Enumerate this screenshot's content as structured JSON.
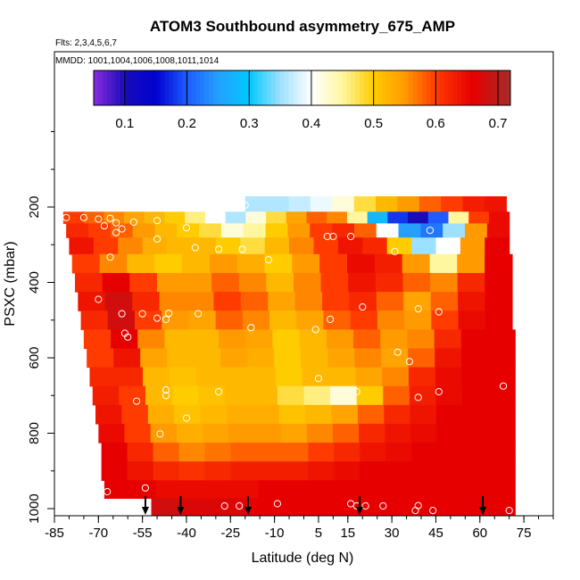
{
  "chart_data": {
    "type": "heatmap",
    "title": "ATOM3 Southbound asymmetry_675_AMP",
    "subtitle_flights": "Flts: 2,3,4,5,6,7",
    "subtitle_dates": "MMDD: 1001,1004,1006,1008,1011,1014",
    "xlabel": "Latitude (deg N)",
    "ylabel": "PSXC (mbar)",
    "xlim": [
      -85,
      85
    ],
    "ylim": [
      1000,
      0
    ],
    "x_ticks": [
      -85,
      -70,
      -55,
      -40,
      -25,
      -10,
      5,
      15,
      30,
      45,
      60,
      75
    ],
    "y_ticks": [
      200,
      400,
      600,
      800,
      1000
    ],
    "colorbar": {
      "range": [
        0.05,
        0.72
      ],
      "ticks": [
        0.1,
        0.2,
        0.3,
        0.4,
        0.5,
        0.6,
        0.7
      ],
      "stops": [
        {
          "v": 0.05,
          "c": "#8a2be2"
        },
        {
          "v": 0.1,
          "c": "#1a0db8"
        },
        {
          "v": 0.15,
          "c": "#0000d0"
        },
        {
          "v": 0.2,
          "c": "#1e5cff"
        },
        {
          "v": 0.25,
          "c": "#25a0ff"
        },
        {
          "v": 0.3,
          "c": "#00c8ff"
        },
        {
          "v": 0.35,
          "c": "#9ee0ff"
        },
        {
          "v": 0.4,
          "c": "#ffffff"
        },
        {
          "v": 0.45,
          "c": "#fff7a0"
        },
        {
          "v": 0.5,
          "c": "#ffcc00"
        },
        {
          "v": 0.55,
          "c": "#ff9a00"
        },
        {
          "v": 0.6,
          "c": "#ff3b00"
        },
        {
          "v": 0.66,
          "c": "#e60000"
        },
        {
          "v": 0.72,
          "c": "#a52a2a"
        }
      ]
    },
    "profile_latitudes": [
      -54,
      -42,
      -19,
      19,
      61
    ],
    "field_rows": [
      {
        "p": 200,
        "lat_min": -20,
        "lat_max": 69,
        "v": [
          0.36,
          0.36,
          0.37,
          0.39,
          0.42,
          0.48,
          0.52,
          0.55,
          0.58,
          0.6,
          0.63,
          0.64
        ]
      },
      {
        "p": 225,
        "lat_min": -82,
        "lat_max": 70,
        "v": [
          0.6,
          0.58,
          0.56,
          0.54,
          0.52,
          0.5,
          0.46,
          0.4,
          0.36,
          0.42,
          0.48,
          0.54,
          0.58,
          0.56,
          0.45,
          0.28,
          0.18,
          0.1,
          0.2,
          0.45,
          0.6,
          0.65
        ]
      },
      {
        "p": 262,
        "lat_min": -81,
        "lat_max": 70,
        "v": [
          0.62,
          0.6,
          0.58,
          0.55,
          0.52,
          0.5,
          0.48,
          0.42,
          0.45,
          0.5,
          0.55,
          0.6,
          0.62,
          0.58,
          0.4,
          0.25,
          0.22,
          0.35,
          0.55,
          0.65
        ]
      },
      {
        "p": 300,
        "lat_min": -80,
        "lat_max": 70,
        "v": [
          0.64,
          0.6,
          0.56,
          0.53,
          0.52,
          0.52,
          0.5,
          0.48,
          0.52,
          0.56,
          0.6,
          0.64,
          0.62,
          0.5,
          0.35,
          0.4,
          0.55,
          0.66
        ]
      },
      {
        "p": 350,
        "lat_min": -79,
        "lat_max": 71,
        "v": [
          0.6,
          0.56,
          0.52,
          0.5,
          0.52,
          0.55,
          0.53,
          0.5,
          0.55,
          0.6,
          0.65,
          0.63,
          0.55,
          0.45,
          0.55,
          0.66
        ]
      },
      {
        "p": 400,
        "lat_min": -78,
        "lat_max": 71,
        "v": [
          0.62,
          0.66,
          0.6,
          0.55,
          0.55,
          0.58,
          0.56,
          0.52,
          0.56,
          0.6,
          0.64,
          0.62,
          0.58,
          0.56,
          0.62,
          0.66
        ]
      },
      {
        "p": 450,
        "lat_min": -77,
        "lat_max": 71,
        "v": [
          0.64,
          0.68,
          0.62,
          0.56,
          0.56,
          0.6,
          0.58,
          0.54,
          0.56,
          0.6,
          0.62,
          0.58,
          0.54,
          0.58,
          0.64,
          0.66
        ]
      },
      {
        "p": 500,
        "lat_min": -76,
        "lat_max": 71,
        "v": [
          0.62,
          0.68,
          0.6,
          0.55,
          0.54,
          0.58,
          0.56,
          0.52,
          0.54,
          0.58,
          0.6,
          0.56,
          0.55,
          0.6,
          0.65,
          0.66
        ]
      },
      {
        "p": 550,
        "lat_min": -75,
        "lat_max": 72,
        "v": [
          0.6,
          0.66,
          0.56,
          0.52,
          0.52,
          0.55,
          0.54,
          0.5,
          0.52,
          0.55,
          0.58,
          0.55,
          0.56,
          0.62,
          0.66,
          0.66
        ]
      },
      {
        "p": 600,
        "lat_min": -74,
        "lat_max": 72,
        "v": [
          0.6,
          0.64,
          0.54,
          0.52,
          0.52,
          0.54,
          0.53,
          0.5,
          0.52,
          0.54,
          0.56,
          0.54,
          0.58,
          0.64,
          0.66,
          0.66
        ]
      },
      {
        "p": 650,
        "lat_min": -73,
        "lat_max": 72,
        "v": [
          0.62,
          0.62,
          0.52,
          0.51,
          0.52,
          0.52,
          0.52,
          0.5,
          0.52,
          0.52,
          0.54,
          0.56,
          0.62,
          0.65,
          0.66,
          0.66
        ]
      },
      {
        "p": 700,
        "lat_min": -72,
        "lat_max": 72,
        "v": [
          0.63,
          0.6,
          0.52,
          0.5,
          0.51,
          0.52,
          0.52,
          0.48,
          0.46,
          0.42,
          0.5,
          0.58,
          0.63,
          0.65,
          0.66,
          0.66
        ]
      },
      {
        "p": 750,
        "lat_min": -71,
        "lat_max": 72,
        "v": [
          0.64,
          0.6,
          0.53,
          0.51,
          0.52,
          0.53,
          0.53,
          0.51,
          0.52,
          0.54,
          0.58,
          0.62,
          0.64,
          0.66,
          0.66,
          0.66
        ]
      },
      {
        "p": 800,
        "lat_min": -70,
        "lat_max": 72,
        "v": [
          0.65,
          0.6,
          0.55,
          0.53,
          0.54,
          0.55,
          0.55,
          0.54,
          0.56,
          0.58,
          0.62,
          0.64,
          0.65,
          0.66,
          0.66,
          0.66
        ]
      },
      {
        "p": 850,
        "lat_min": -69,
        "lat_max": 72,
        "v": [
          0.66,
          0.62,
          0.58,
          0.56,
          0.57,
          0.58,
          0.58,
          0.58,
          0.6,
          0.62,
          0.64,
          0.65,
          0.66,
          0.66,
          0.66,
          0.66
        ]
      },
      {
        "p": 900,
        "lat_min": -69,
        "lat_max": 72,
        "v": [
          0.66,
          0.64,
          0.62,
          0.61,
          0.62,
          0.63,
          0.63,
          0.63,
          0.64,
          0.65,
          0.66,
          0.66,
          0.66,
          0.66,
          0.66,
          0.66
        ]
      },
      {
        "p": 950,
        "lat_min": -68,
        "lat_max": 72,
        "v": [
          0.66,
          0.66,
          0.65,
          0.65,
          0.65,
          0.65,
          0.66,
          0.66,
          0.66,
          0.66,
          0.66,
          0.66,
          0.66,
          0.66,
          0.66,
          0.66
        ]
      },
      {
        "p": 995,
        "lat_min": -52,
        "lat_max": 72,
        "v": [
          0.68,
          0.67,
          0.67,
          0.66,
          0.66,
          0.66,
          0.66,
          0.66,
          0.66,
          0.66,
          0.66,
          0.66
        ]
      }
    ],
    "observations": [
      [
        -81,
        228
      ],
      [
        -75,
        228
      ],
      [
        -70,
        232
      ],
      [
        -66,
        230
      ],
      [
        -64,
        242
      ],
      [
        -68,
        250
      ],
      [
        -62,
        258
      ],
      [
        -64,
        268
      ],
      [
        -58,
        240
      ],
      [
        -50,
        236
      ],
      [
        -40,
        255
      ],
      [
        -50,
        285
      ],
      [
        -37,
        308
      ],
      [
        -29,
        312
      ],
      [
        -21,
        312
      ],
      [
        -12,
        340
      ],
      [
        8,
        278
      ],
      [
        10,
        278
      ],
      [
        16,
        278
      ],
      [
        31,
        318
      ],
      [
        -20,
        195
      ],
      [
        43,
        262
      ],
      [
        -66,
        333
      ],
      [
        -70,
        445
      ],
      [
        -62,
        483
      ],
      [
        -55,
        483
      ],
      [
        -50,
        495
      ],
      [
        -47,
        498
      ],
      [
        -46,
        482
      ],
      [
        -36,
        483
      ],
      [
        -61,
        535
      ],
      [
        -60,
        545
      ],
      [
        -57,
        715
      ],
      [
        -49,
        802
      ],
      [
        -47,
        685
      ],
      [
        -47,
        700
      ],
      [
        -40,
        760
      ],
      [
        -29,
        690
      ],
      [
        -18,
        520
      ],
      [
        4,
        525
      ],
      [
        9,
        498
      ],
      [
        20,
        465
      ],
      [
        32,
        585
      ],
      [
        36,
        610
      ],
      [
        39,
        470
      ],
      [
        46,
        478
      ],
      [
        46,
        690
      ],
      [
        5,
        655
      ],
      [
        18,
        690
      ],
      [
        39,
        705
      ],
      [
        -67,
        955
      ],
      [
        -54,
        945
      ],
      [
        -27,
        993
      ],
      [
        -22,
        993
      ],
      [
        -9,
        987
      ],
      [
        16,
        987
      ],
      [
        18,
        993
      ],
      [
        21,
        993
      ],
      [
        27,
        993
      ],
      [
        39,
        992
      ],
      [
        38,
        1005
      ],
      [
        44,
        1005
      ],
      [
        70,
        1005
      ],
      [
        68,
        675
      ]
    ]
  }
}
